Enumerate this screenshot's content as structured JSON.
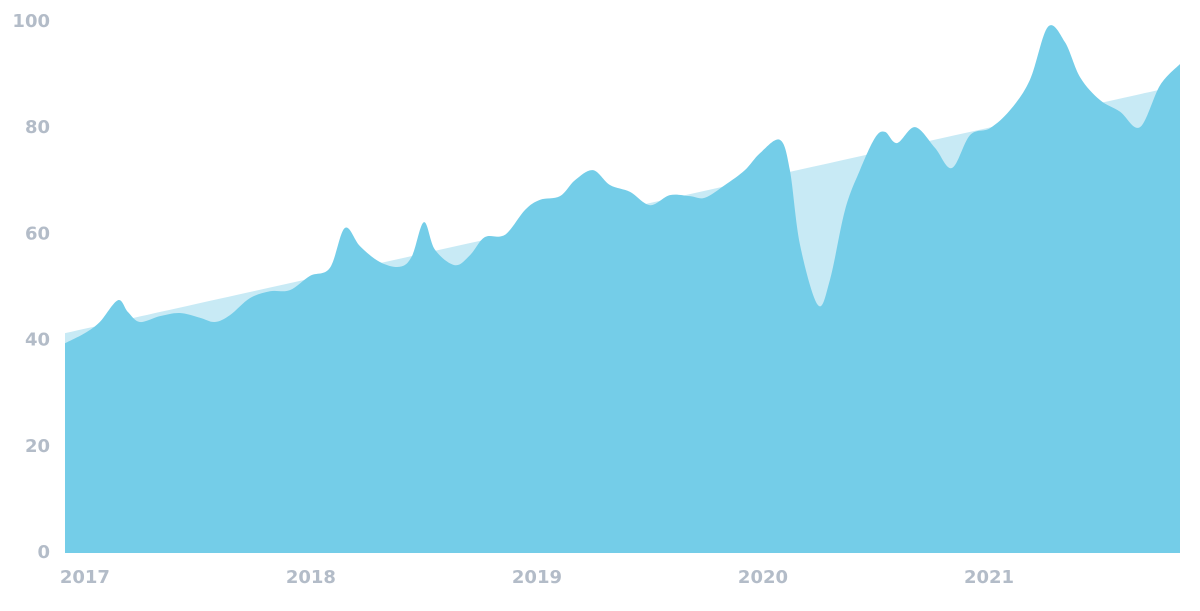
{
  "chart_data": {
    "type": "area",
    "x": [
      2016.912,
      2017.0,
      2017.066,
      2017.146,
      2017.19,
      2017.243,
      2017.332,
      2017.42,
      2017.509,
      2017.575,
      2017.642,
      2017.73,
      2017.819,
      2017.907,
      2017.996,
      2018.084,
      2018.15,
      2018.217,
      2018.305,
      2018.394,
      2018.447,
      2018.5,
      2018.549,
      2018.637,
      2018.704,
      2018.77,
      2018.858,
      2018.947,
      2019.013,
      2019.102,
      2019.168,
      2019.248,
      2019.323,
      2019.412,
      2019.5,
      2019.588,
      2019.677,
      2019.743,
      2019.832,
      2019.92,
      2019.987,
      2020.075,
      2020.119,
      2020.164,
      2020.243,
      2020.296,
      2020.363,
      2020.429,
      2020.496,
      2020.54,
      2020.593,
      2020.673,
      2020.761,
      2020.836,
      2020.916,
      2021.004,
      2021.093,
      2021.181,
      2021.261,
      2021.336,
      2021.403,
      2021.491,
      2021.58,
      2021.668,
      2021.757,
      2021.845
    ],
    "series": [
      {
        "color": "#74cde8",
        "values": [
          39.5,
          41.4,
          43.5,
          47.6,
          45.4,
          43.5,
          44.6,
          45.2,
          44.3,
          43.5,
          44.8,
          48.0,
          49.3,
          49.5,
          52.2,
          53.7,
          61.2,
          57.8,
          54.8,
          53.9,
          55.9,
          62.3,
          57.1,
          54.2,
          56.1,
          59.5,
          59.9,
          64.6,
          66.5,
          67.2,
          70.2,
          72.1,
          69.3,
          68.0,
          65.5,
          67.4,
          67.2,
          66.9,
          69.3,
          72.1,
          75.3,
          77.8,
          72.1,
          58.0,
          46.7,
          51.4,
          64.6,
          72.1,
          78.2,
          79.3,
          77.2,
          80.2,
          76.3,
          72.5,
          78.7,
          80.0,
          83.4,
          89.1,
          99.1,
          96.2,
          89.6,
          85.3,
          83.1,
          80.2,
          88.1,
          92.1
        ]
      }
    ],
    "trend": {
      "color": "#c8eaf5",
      "x": [
        2016.912,
        2021.845
      ],
      "values": [
        41.4,
        88.1
      ]
    },
    "xlim": [
      2016.912,
      2021.845
    ],
    "xticks": [
      2017,
      2018,
      2019,
      2020,
      2021
    ],
    "ylim": [
      0,
      100
    ],
    "yticks": [
      0,
      20,
      40,
      60,
      80,
      100
    ]
  }
}
